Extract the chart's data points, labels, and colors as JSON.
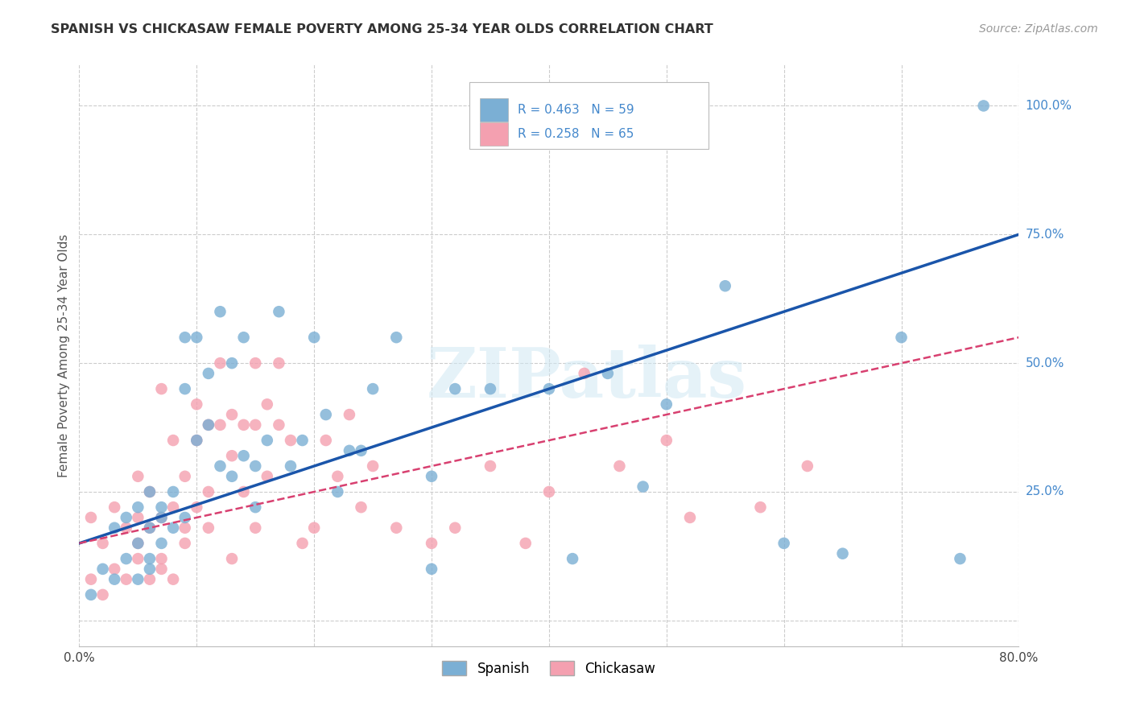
{
  "title": "SPANISH VS CHICKASAW FEMALE POVERTY AMONG 25-34 YEAR OLDS CORRELATION CHART",
  "source": "Source: ZipAtlas.com",
  "ylabel": "Female Poverty Among 25-34 Year Olds",
  "xlim": [
    0.0,
    0.8
  ],
  "ylim": [
    -0.05,
    1.08
  ],
  "xtick_positions": [
    0.0,
    0.1,
    0.2,
    0.3,
    0.4,
    0.5,
    0.6,
    0.7,
    0.8
  ],
  "xticklabels": [
    "0.0%",
    "",
    "",
    "",
    "",
    "",
    "",
    "",
    "80.0%"
  ],
  "ytick_positions": [
    0.0,
    0.25,
    0.5,
    0.75,
    1.0
  ],
  "ytick_labels": [
    "",
    "25.0%",
    "50.0%",
    "75.0%",
    "100.0%"
  ],
  "spanish_color": "#7bafd4",
  "chickasaw_color": "#f4a0b0",
  "spanish_line_color": "#1a55aa",
  "chickasaw_line_color": "#d84070",
  "right_label_color": "#4488cc",
  "spanish_R": 0.463,
  "spanish_N": 59,
  "chickasaw_R": 0.258,
  "chickasaw_N": 65,
  "legend_label_spanish": "Spanish",
  "legend_label_chickasaw": "Chickasaw",
  "watermark": "ZIPatlas",
  "background_color": "#ffffff",
  "grid_color": "#cccccc",
  "spanish_x": [
    0.01,
    0.02,
    0.03,
    0.03,
    0.04,
    0.04,
    0.05,
    0.05,
    0.05,
    0.06,
    0.06,
    0.06,
    0.06,
    0.07,
    0.07,
    0.07,
    0.08,
    0.08,
    0.09,
    0.09,
    0.09,
    0.1,
    0.1,
    0.11,
    0.11,
    0.12,
    0.12,
    0.13,
    0.13,
    0.14,
    0.14,
    0.15,
    0.15,
    0.16,
    0.17,
    0.18,
    0.19,
    0.2,
    0.21,
    0.22,
    0.23,
    0.24,
    0.25,
    0.27,
    0.3,
    0.32,
    0.35,
    0.4,
    0.42,
    0.45,
    0.48,
    0.5,
    0.55,
    0.6,
    0.65,
    0.7,
    0.75,
    0.77,
    0.3
  ],
  "spanish_y": [
    0.05,
    0.1,
    0.08,
    0.18,
    0.12,
    0.2,
    0.15,
    0.22,
    0.08,
    0.1,
    0.18,
    0.25,
    0.12,
    0.15,
    0.22,
    0.2,
    0.18,
    0.25,
    0.2,
    0.55,
    0.45,
    0.55,
    0.35,
    0.48,
    0.38,
    0.6,
    0.3,
    0.5,
    0.28,
    0.32,
    0.55,
    0.3,
    0.22,
    0.35,
    0.6,
    0.3,
    0.35,
    0.55,
    0.4,
    0.25,
    0.33,
    0.33,
    0.45,
    0.55,
    0.28,
    0.45,
    0.45,
    0.45,
    0.12,
    0.48,
    0.26,
    0.42,
    0.65,
    0.15,
    0.13,
    0.55,
    0.12,
    1.0,
    0.1
  ],
  "chickasaw_x": [
    0.01,
    0.01,
    0.02,
    0.02,
    0.03,
    0.03,
    0.04,
    0.04,
    0.05,
    0.05,
    0.05,
    0.05,
    0.06,
    0.06,
    0.06,
    0.07,
    0.07,
    0.07,
    0.07,
    0.08,
    0.08,
    0.08,
    0.09,
    0.09,
    0.09,
    0.1,
    0.1,
    0.1,
    0.11,
    0.11,
    0.11,
    0.12,
    0.12,
    0.13,
    0.13,
    0.13,
    0.14,
    0.14,
    0.15,
    0.15,
    0.15,
    0.16,
    0.16,
    0.17,
    0.17,
    0.18,
    0.19,
    0.2,
    0.21,
    0.22,
    0.23,
    0.24,
    0.25,
    0.27,
    0.3,
    0.32,
    0.35,
    0.38,
    0.4,
    0.43,
    0.46,
    0.5,
    0.52,
    0.58,
    0.62
  ],
  "chickasaw_y": [
    0.08,
    0.2,
    0.05,
    0.15,
    0.1,
    0.22,
    0.08,
    0.18,
    0.12,
    0.2,
    0.28,
    0.15,
    0.08,
    0.18,
    0.25,
    0.12,
    0.2,
    0.45,
    0.1,
    0.08,
    0.22,
    0.35,
    0.15,
    0.28,
    0.18,
    0.35,
    0.42,
    0.22,
    0.25,
    0.38,
    0.18,
    0.38,
    0.5,
    0.32,
    0.12,
    0.4,
    0.25,
    0.38,
    0.38,
    0.18,
    0.5,
    0.28,
    0.42,
    0.38,
    0.5,
    0.35,
    0.15,
    0.18,
    0.35,
    0.28,
    0.4,
    0.22,
    0.3,
    0.18,
    0.15,
    0.18,
    0.3,
    0.15,
    0.25,
    0.48,
    0.3,
    0.35,
    0.2,
    0.22,
    0.3
  ],
  "spanish_line_x0": 0.0,
  "spanish_line_y0": 0.15,
  "spanish_line_x1": 0.8,
  "spanish_line_y1": 0.75,
  "chickasaw_line_x0": 0.0,
  "chickasaw_line_y0": 0.15,
  "chickasaw_line_x1": 0.8,
  "chickasaw_line_y1": 0.55
}
